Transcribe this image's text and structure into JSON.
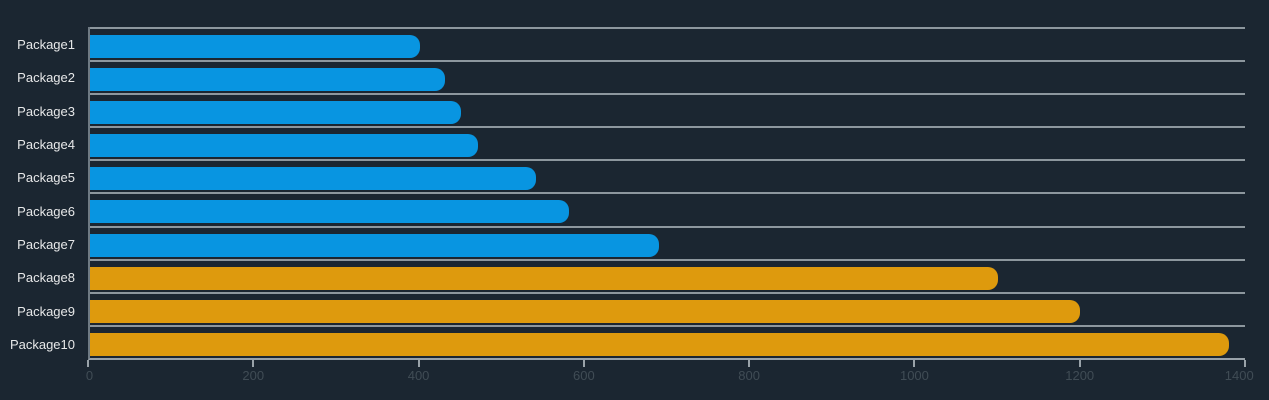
{
  "chart_data": {
    "type": "bar",
    "orientation": "horizontal",
    "title": "",
    "xlabel": "",
    "ylabel": "",
    "categories": [
      "Package1",
      "Package2",
      "Package3",
      "Package4",
      "Package5",
      "Package6",
      "Package7",
      "Package8",
      "Package9",
      "Package10"
    ],
    "values": [
      400,
      430,
      450,
      470,
      540,
      580,
      690,
      1100,
      1200,
      1380
    ],
    "bar_colors": [
      "#0895e1",
      "#0895e1",
      "#0895e1",
      "#0895e1",
      "#0895e1",
      "#0895e1",
      "#0895e1",
      "#de9a0d",
      "#de9a0d",
      "#de9a0d"
    ],
    "xlim": [
      0,
      1400
    ],
    "x_ticks": [
      0,
      200,
      400,
      600,
      800,
      1000,
      1200,
      1400
    ],
    "grid": "horizontal-row-separators",
    "legend": "none",
    "colors": {
      "background": "#1b2631",
      "blue_series": "#0895e1",
      "orange_series": "#de9a0d",
      "gridline": "#8d979e",
      "axis_line": "#99a2a9",
      "category_label_text": "#e7e8e9",
      "tick_label_text": "#404c55"
    }
  }
}
